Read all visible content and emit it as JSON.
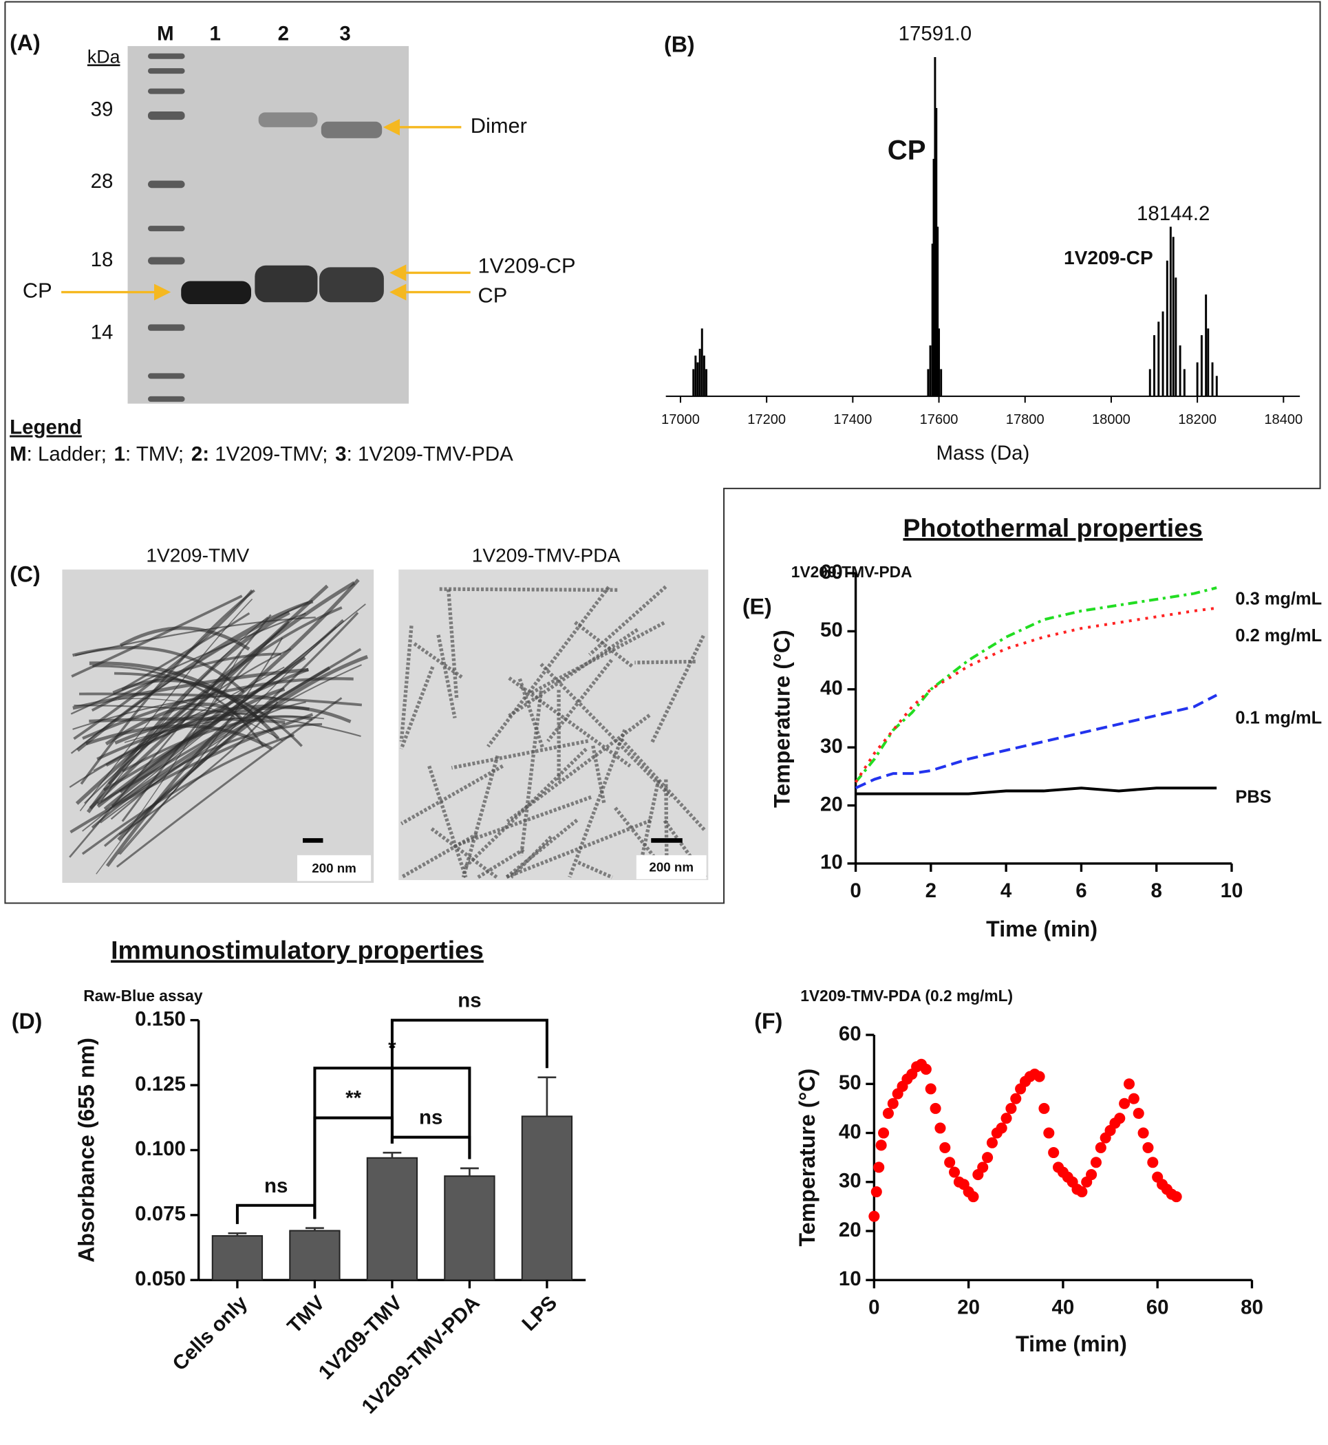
{
  "gel": {
    "panel": "(A)",
    "lanes": [
      "M",
      "1",
      "2",
      "3"
    ],
    "unit": "kDa",
    "markers": [
      39,
      28,
      18,
      14
    ],
    "arrows": [
      "Dimer",
      "1V209-CP",
      "CP"
    ],
    "left_arrow": "CP",
    "legend_title": "Legend",
    "legend": [
      {
        "key": "M",
        "text": ": Ladder;"
      },
      {
        "key": "1",
        "text": ": TMV;"
      },
      {
        "key": "2:",
        "text": " 1V209-TMV;"
      },
      {
        "key": "3",
        "text": ": 1V209-TMV-PDA"
      }
    ]
  },
  "tem": {
    "panel": "(C)",
    "images": [
      {
        "title": "1V209-TMV",
        "scale_bar": "200 nm"
      },
      {
        "title": "1V209-TMV-PDA",
        "scale_bar": "200 nm"
      }
    ]
  },
  "chart_data": [
    {
      "type": "spectrum",
      "panel": "(B)",
      "xlabel": "Mass (Da)",
      "color": "#000000",
      "x": [
        17030,
        17035,
        17040,
        17045,
        17050,
        17055,
        17060,
        17575,
        17580,
        17585,
        17588,
        17591.0,
        17594,
        17597,
        17600,
        17605,
        18090,
        18100,
        18110,
        18120,
        18130,
        18138,
        18144.2,
        18150,
        18160,
        18170,
        18200,
        18210,
        18220,
        18225,
        18235,
        18245
      ],
      "values": [
        8,
        12,
        10,
        14,
        20,
        12,
        8,
        8,
        15,
        45,
        70,
        100,
        85,
        50,
        20,
        8,
        8,
        18,
        22,
        25,
        40,
        50,
        47,
        35,
        15,
        8,
        10,
        18,
        30,
        20,
        10,
        6
      ],
      "xlim": [
        16966,
        18438
      ],
      "xticks": [
        17000,
        17200,
        17400,
        17600,
        17800,
        18000,
        18200,
        18400
      ],
      "ylim": [
        0,
        100
      ],
      "peak_labels": [
        {
          "value": 17591.0,
          "label": "17591.0",
          "name": "CP"
        },
        {
          "value": 18144.2,
          "label": "18144.2",
          "name": "1V209-CP"
        }
      ]
    },
    {
      "type": "bar",
      "panel": "(D)",
      "title": "Immunostimulatory properties",
      "subtitle": "Raw-Blue assay",
      "ylabel": "Absorbance (655 nm)",
      "categories": [
        "Cells only",
        "TMV",
        "1V209-TMV",
        "1V209-TMV-PDA",
        "LPS"
      ],
      "values": [
        0.067,
        0.069,
        0.097,
        0.09,
        0.113
      ],
      "errors": [
        0.001,
        0.001,
        0.002,
        0.003,
        0.015
      ],
      "color": "#595959",
      "ylim": [
        0.05,
        0.15
      ],
      "yticks": [
        {
          "value": 0.05,
          "label": "0.050"
        },
        {
          "value": 0.075,
          "label": "0.075"
        },
        {
          "value": 0.1,
          "label": "0.100"
        },
        {
          "value": 0.125,
          "label": "0.125"
        },
        {
          "value": 0.15,
          "label": "0.150"
        }
      ],
      "significance": [
        {
          "pair": [
            "Cells only",
            "TMV"
          ],
          "label": "ns"
        },
        {
          "pair": [
            "TMV",
            "1V209-TMV"
          ],
          "label": "**"
        },
        {
          "pair": [
            "TMV",
            "1V209-TMV-PDA"
          ],
          "label": "*"
        },
        {
          "pair": [
            "1V209-TMV",
            "1V209-TMV-PDA"
          ],
          "label": "ns"
        },
        {
          "pair": [
            "1V209-TMV",
            "LPS"
          ],
          "label": "ns"
        }
      ]
    },
    {
      "type": "line",
      "panel": "(E)",
      "title": "Photothermal properties",
      "subtitle": "1V209-TMV-PDA",
      "xlabel": "Time (min)",
      "ylabel": "Temperature (°C)",
      "x": [
        0,
        0.5,
        1,
        1.5,
        2,
        3,
        4,
        5,
        6,
        7,
        8,
        9,
        9.6
      ],
      "series": [
        {
          "name": "0.3 mg/mL",
          "color": "#22dd22",
          "style": "dash-dot",
          "values": [
            24,
            28,
            33,
            36,
            40,
            45,
            49,
            52,
            53.5,
            54.5,
            55.5,
            56.5,
            57.5
          ]
        },
        {
          "name": "0.2 mg/mL",
          "color": "#ff2222",
          "style": "dotted",
          "values": [
            24,
            29,
            33,
            37,
            40,
            44,
            47,
            49,
            50.5,
            51.5,
            52.5,
            53.5,
            54
          ]
        },
        {
          "name": "0.1 mg/mL",
          "color": "#2233ee",
          "style": "dashed",
          "values": [
            23,
            24.5,
            25.5,
            25.5,
            26,
            28,
            29.5,
            31,
            32.5,
            34,
            35.5,
            37,
            39
          ]
        },
        {
          "name": "PBS",
          "color": "#000000",
          "style": "solid",
          "values": [
            22,
            22,
            22,
            22,
            22,
            22,
            22.5,
            22.5,
            23,
            22.5,
            23,
            23,
            23
          ]
        }
      ],
      "xlim": [
        0,
        10
      ],
      "xticks": [
        0,
        2,
        4,
        6,
        8,
        10
      ],
      "ylim": [
        10,
        60
      ],
      "yticks": [
        10,
        20,
        30,
        40,
        50,
        60
      ]
    },
    {
      "type": "scatter",
      "panel": "(F)",
      "subtitle": "1V209-TMV-PDA (0.2 mg/mL)",
      "xlabel": "Time (min)",
      "ylabel": "Temperature (°C)",
      "color": "#ff0000",
      "x": [
        0,
        0.5,
        1,
        1.5,
        2,
        3,
        4,
        5,
        6,
        7,
        8,
        9,
        10,
        11,
        12,
        13,
        14,
        15,
        16,
        17,
        18,
        19,
        20,
        21,
        22,
        23,
        24,
        25,
        26,
        27,
        28,
        29,
        30,
        31,
        32,
        33,
        34,
        35,
        36,
        37,
        38,
        39,
        40,
        41,
        42,
        43,
        44,
        45,
        46,
        47,
        48,
        49,
        50,
        51,
        52,
        53,
        54,
        55,
        56,
        57,
        58,
        59,
        60,
        61,
        62,
        63,
        64
      ],
      "values": [
        23,
        28,
        33,
        37.5,
        40,
        44,
        46,
        48,
        49.5,
        51,
        52,
        53.5,
        54,
        53,
        49,
        45,
        41,
        37,
        34,
        32,
        30,
        29.5,
        28,
        27,
        31.5,
        33,
        35,
        38,
        40,
        41,
        43,
        45,
        47,
        49,
        50.5,
        51.5,
        52,
        51.5,
        45,
        40,
        36,
        33,
        32,
        31,
        30,
        28.5,
        28,
        30,
        31.5,
        34,
        37,
        39,
        40.5,
        42,
        43,
        46,
        50,
        47,
        44,
        40,
        37,
        34,
        31,
        29.5,
        28.5,
        27.5,
        27
      ],
      "xlim": [
        0,
        80
      ],
      "xticks": [
        0,
        20,
        40,
        60,
        80
      ],
      "ylim": [
        10,
        60
      ],
      "yticks": [
        10,
        20,
        30,
        40,
        50,
        60
      ]
    }
  ]
}
